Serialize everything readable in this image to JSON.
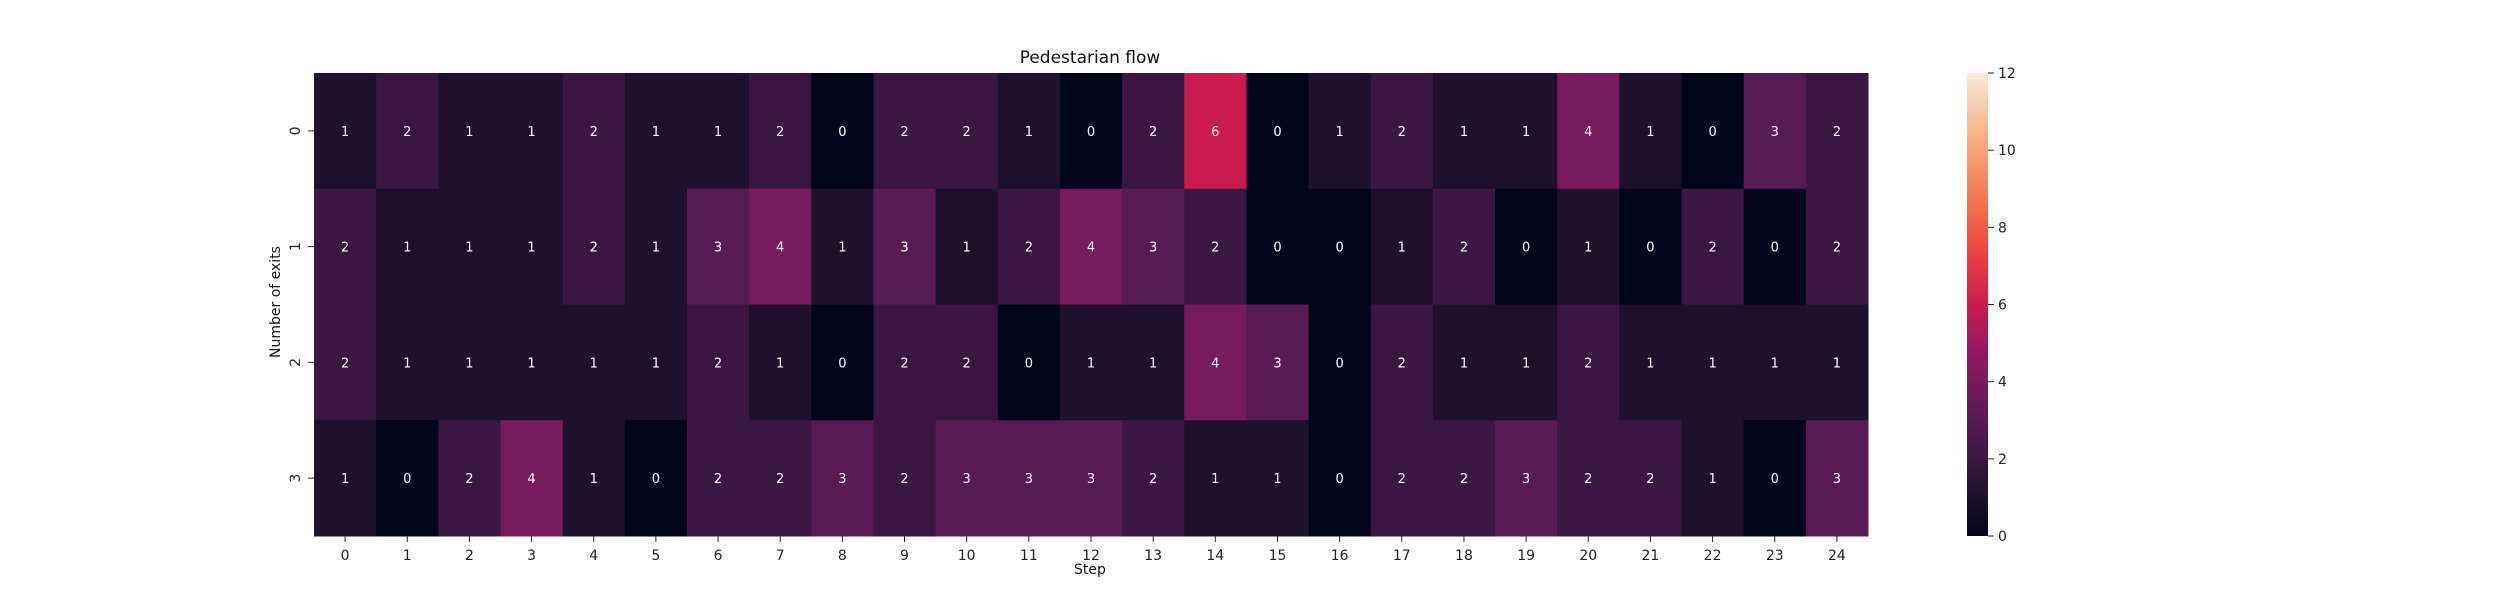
{
  "chart_data": {
    "type": "heatmap",
    "title": "Pedestarian flow",
    "xlabel": "Step",
    "ylabel": "Number of exits",
    "x_categories": [
      "0",
      "1",
      "2",
      "3",
      "4",
      "5",
      "6",
      "7",
      "8",
      "9",
      "10",
      "11",
      "12",
      "13",
      "14",
      "15",
      "16",
      "17",
      "18",
      "19",
      "20",
      "21",
      "22",
      "23",
      "24"
    ],
    "y_categories": [
      "0",
      "1",
      "2",
      "3"
    ],
    "values": [
      [
        1,
        2,
        1,
        1,
        2,
        1,
        1,
        2,
        0,
        2,
        2,
        1,
        0,
        2,
        6,
        0,
        1,
        2,
        1,
        1,
        4,
        1,
        0,
        3,
        2
      ],
      [
        2,
        1,
        1,
        1,
        2,
        1,
        3,
        4,
        1,
        3,
        1,
        2,
        4,
        3,
        2,
        0,
        0,
        1,
        2,
        0,
        1,
        0,
        2,
        0,
        2
      ],
      [
        2,
        1,
        1,
        1,
        1,
        1,
        2,
        1,
        0,
        2,
        2,
        0,
        1,
        1,
        4,
        3,
        0,
        2,
        1,
        1,
        2,
        1,
        1,
        1,
        1
      ],
      [
        1,
        0,
        2,
        4,
        1,
        0,
        2,
        2,
        3,
        2,
        3,
        3,
        3,
        2,
        1,
        1,
        0,
        2,
        2,
        3,
        2,
        2,
        1,
        0,
        3
      ]
    ],
    "colorbar": {
      "min": 0,
      "max": 12,
      "ticks": [
        "0",
        "2",
        "4",
        "6",
        "8",
        "10",
        "12"
      ],
      "colormap": "rocket"
    },
    "annotations_shown": true,
    "grid": false
  }
}
